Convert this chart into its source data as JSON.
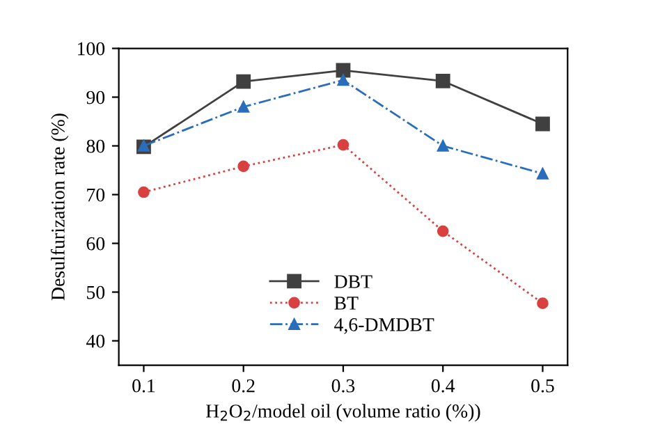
{
  "chart_data": {
    "type": "line",
    "xlabel": "H$_{2}$O$_{2}$/model oil (volume ratio (%))",
    "ylabel": "Desulfurization rate (%)",
    "x": [
      0.1,
      0.2,
      0.3,
      0.4,
      0.5
    ],
    "xlim": [
      0.075,
      0.525
    ],
    "xticks": [
      0.1,
      0.2,
      0.3,
      0.4,
      0.5
    ],
    "ylim": [
      35,
      100
    ],
    "yticks": [
      40,
      50,
      60,
      70,
      80,
      90,
      100
    ],
    "grid": false,
    "legend": "bottom",
    "series": [
      {
        "name": "DBT",
        "color": "#404040",
        "values": [
          79.8,
          93.2,
          95.5,
          93.3,
          84.5
        ],
        "marker": "square",
        "line_style": "solid"
      },
      {
        "name": "BT",
        "color": "#d94040",
        "values": [
          70.5,
          75.8,
          80.2,
          62.5,
          47.7
        ],
        "marker": "circle",
        "line_style": "dotted"
      },
      {
        "name": "4,6-DMDBT",
        "color": "#2a6ebb",
        "values": [
          80,
          88,
          93.5,
          80,
          74.3
        ],
        "marker": "triangle",
        "line_style": "dashdot"
      }
    ]
  }
}
